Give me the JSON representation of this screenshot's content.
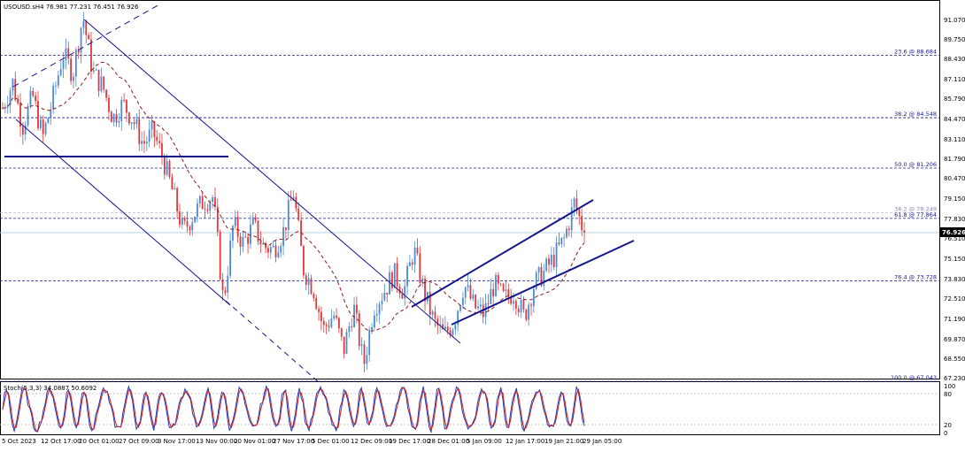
{
  "header": {
    "symbol_line": "USOUSD.sH4  76.981 77.231 76.451 76.926"
  },
  "price_axis": {
    "labels": [
      "91.070",
      "89.750",
      "88.430",
      "87.110",
      "85.790",
      "84.470",
      "83.110",
      "81.790",
      "80.470",
      "79.150",
      "77.830",
      "76.510",
      "75.150",
      "73.830",
      "72.510",
      "71.190",
      "69.870",
      "68.550",
      "67.230"
    ],
    "current_price": "76.926"
  },
  "fib_levels": [
    {
      "label": "23.6 @ 88.684",
      "price": 88.684,
      "muted": false
    },
    {
      "label": "38.2 @ 84.548",
      "price": 84.548,
      "muted": false
    },
    {
      "label": "50.0 @ 81.206",
      "price": 81.206,
      "muted": false
    },
    {
      "label": "38.2 @ 78.249",
      "price": 78.249,
      "muted": true
    },
    {
      "label": "61.8 @ 77.864",
      "price": 77.864,
      "muted": false
    },
    {
      "label": "76.4 @ 73.728",
      "price": 73.728,
      "muted": false
    },
    {
      "label": "100.0 @ 67.043",
      "price": 67.043,
      "muted": false
    }
  ],
  "time_axis": {
    "labels": [
      "5 Oct 2023",
      "12 Oct 17:00",
      "20 Oct 01:00",
      "27 Oct 09:00",
      "3 Nov 17:00",
      "13 Nov 00:00",
      "20 Nov 01:00",
      "27 Nov 17:00",
      "5 Dec 01:00",
      "12 Dec 09:00",
      "19 Dec 17:00",
      "28 Dec 01:00",
      "5 Jan 09:00",
      "12 Jan 17:00",
      "19 Jan 21:00",
      "29 Jan 05:00"
    ]
  },
  "stoch": {
    "label": "Stoch(5,3,3) 34.0887 50.6092",
    "axis_labels": [
      "100",
      "80",
      "20",
      "0"
    ],
    "colors": {
      "main": "#1f3fbf",
      "signal": "#d11c1c"
    }
  },
  "colors": {
    "bull": "#4a8ad6",
    "bear": "#e0383a",
    "channel": "#16168c",
    "ma": "#8b1a1a",
    "grid": "#1a1a8c"
  },
  "chart_data": {
    "type": "candlestick",
    "symbol": "USOUSD.s",
    "timeframe": "H4",
    "ohlc_last": {
      "open": 76.981,
      "high": 77.231,
      "low": 76.451,
      "close": 76.926
    },
    "ylim": [
      67.23,
      91.07
    ],
    "price_path": [
      [
        0,
        85.2
      ],
      [
        4,
        86.9
      ],
      [
        8,
        84.0
      ],
      [
        12,
        86.0
      ],
      [
        16,
        83.2
      ],
      [
        20,
        85.8
      ],
      [
        24,
        88.8
      ],
      [
        28,
        87.5
      ],
      [
        32,
        91.3
      ],
      [
        36,
        87.5
      ],
      [
        40,
        86.6
      ],
      [
        44,
        84.5
      ],
      [
        48,
        85.5
      ],
      [
        52,
        84.4
      ],
      [
        56,
        82.8
      ],
      [
        60,
        83.6
      ],
      [
        64,
        81.8
      ],
      [
        68,
        79.5
      ],
      [
        72,
        77.0
      ],
      [
        76,
        78.1
      ],
      [
        80,
        79.0
      ],
      [
        84,
        79.3
      ],
      [
        88,
        72.3
      ],
      [
        92,
        77.5
      ],
      [
        96,
        76.2
      ],
      [
        100,
        77.4
      ],
      [
        104,
        76.0
      ],
      [
        108,
        75.8
      ],
      [
        112,
        77.0
      ],
      [
        116,
        79.6
      ],
      [
        120,
        74.5
      ],
      [
        124,
        73.2
      ],
      [
        128,
        70.5
      ],
      [
        132,
        71.5
      ],
      [
        136,
        69.1
      ],
      [
        140,
        72.0
      ],
      [
        144,
        68.1
      ],
      [
        148,
        72.0
      ],
      [
        152,
        73.0
      ],
      [
        156,
        74.2
      ],
      [
        160,
        73.0
      ],
      [
        164,
        75.8
      ],
      [
        168,
        73.0
      ],
      [
        172,
        71.0
      ],
      [
        176,
        70.1
      ],
      [
        180,
        71.0
      ],
      [
        184,
        73.5
      ],
      [
        188,
        72.0
      ],
      [
        192,
        71.5
      ],
      [
        196,
        73.5
      ],
      [
        200,
        72.5
      ],
      [
        204,
        73.0
      ],
      [
        208,
        71.3
      ],
      [
        212,
        73.5
      ],
      [
        216,
        74.3
      ],
      [
        220,
        75.3
      ],
      [
        224,
        76.5
      ],
      [
        228,
        78.9
      ],
      [
        232,
        76.9
      ]
    ]
  }
}
